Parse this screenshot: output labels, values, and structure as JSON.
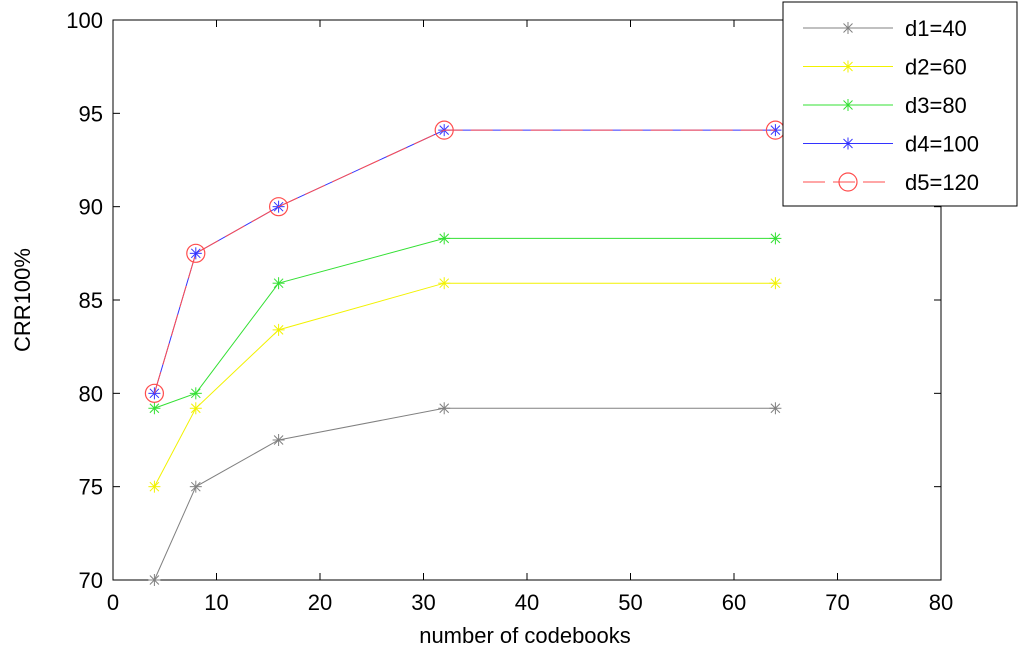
{
  "chart_data": {
    "type": "line",
    "xlabel": "number of codebooks",
    "ylabel": "CRR100%",
    "xlim": [
      0,
      80
    ],
    "ylim": [
      70,
      100
    ],
    "xticks": [
      0,
      10,
      20,
      30,
      40,
      50,
      60,
      70,
      80
    ],
    "yticks": [
      70,
      75,
      80,
      85,
      90,
      95,
      100
    ],
    "grid": false,
    "legend_position": "top-right",
    "x": [
      4,
      8,
      16,
      32,
      64
    ],
    "series": [
      {
        "name": "d1=40",
        "values": [
          70.0,
          75.0,
          77.5,
          79.2,
          79.2
        ],
        "color": "#808080",
        "marker": "star",
        "dash": "solid"
      },
      {
        "name": "d2=60",
        "values": [
          75.0,
          79.2,
          83.4,
          85.9,
          85.9
        ],
        "color": "#f2f200",
        "marker": "star",
        "dash": "solid"
      },
      {
        "name": "d3=80",
        "values": [
          79.2,
          80.0,
          85.9,
          88.3,
          88.3
        ],
        "color": "#33e033",
        "marker": "star",
        "dash": "solid"
      },
      {
        "name": "d4=100",
        "values": [
          80.0,
          87.5,
          90.0,
          94.1,
          94.1
        ],
        "color": "#3333ff",
        "marker": "star",
        "dash": "solid"
      },
      {
        "name": "d5=120",
        "values": [
          80.0,
          87.5,
          90.0,
          94.1,
          94.1
        ],
        "color": "#ff4d4d",
        "marker": "circle",
        "dash": "dashed"
      }
    ]
  }
}
